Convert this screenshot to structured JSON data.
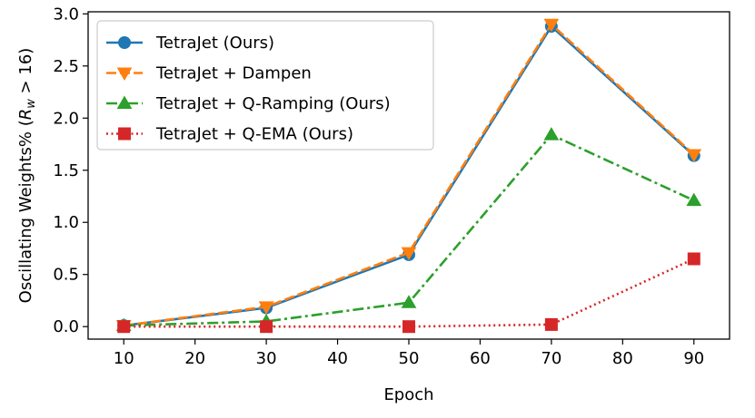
{
  "chart_data": {
    "type": "line",
    "xlabel": "Epoch",
    "ylabel": "Oscillating Weights% (R_w > 16)",
    "ylabel_parts": {
      "prefix": "Oscillating Weights% (",
      "symbol": "R",
      "subscript": "w",
      "suffix": " > 16)"
    },
    "x": [
      10,
      30,
      50,
      70,
      90
    ],
    "xlim": [
      5,
      95
    ],
    "ylim": [
      -0.12,
      3.02
    ],
    "xticks": [
      10,
      20,
      30,
      40,
      50,
      60,
      70,
      80,
      90
    ],
    "yticks": [
      0.0,
      0.5,
      1.0,
      1.5,
      2.0,
      2.5,
      3.0
    ],
    "ytick_labels": [
      "0.0",
      "0.5",
      "1.0",
      "1.5",
      "2.0",
      "2.5",
      "3.0"
    ],
    "grid": false,
    "legend_position": "top-left",
    "series": [
      {
        "name": "TetraJet (Ours)",
        "values": [
          0.01,
          0.18,
          0.69,
          2.88,
          1.64
        ],
        "color": "#1f77b4",
        "linestyle": "solid",
        "marker": "circle"
      },
      {
        "name": "TetraJet + Dampen",
        "values": [
          0.01,
          0.19,
          0.71,
          2.9,
          1.65
        ],
        "color": "#ff7f0e",
        "linestyle": "dashed",
        "marker": "triangle-down"
      },
      {
        "name": "TetraJet + Q-Ramping (Ours)",
        "values": [
          0.01,
          0.05,
          0.23,
          1.84,
          1.21
        ],
        "color": "#2ca02c",
        "linestyle": "dashdot",
        "marker": "triangle-up"
      },
      {
        "name": "TetraJet + Q-EMA (Ours)",
        "values": [
          0.0,
          0.0,
          0.0,
          0.02,
          0.65
        ],
        "color": "#d62728",
        "linestyle": "dotted",
        "marker": "square"
      }
    ]
  }
}
